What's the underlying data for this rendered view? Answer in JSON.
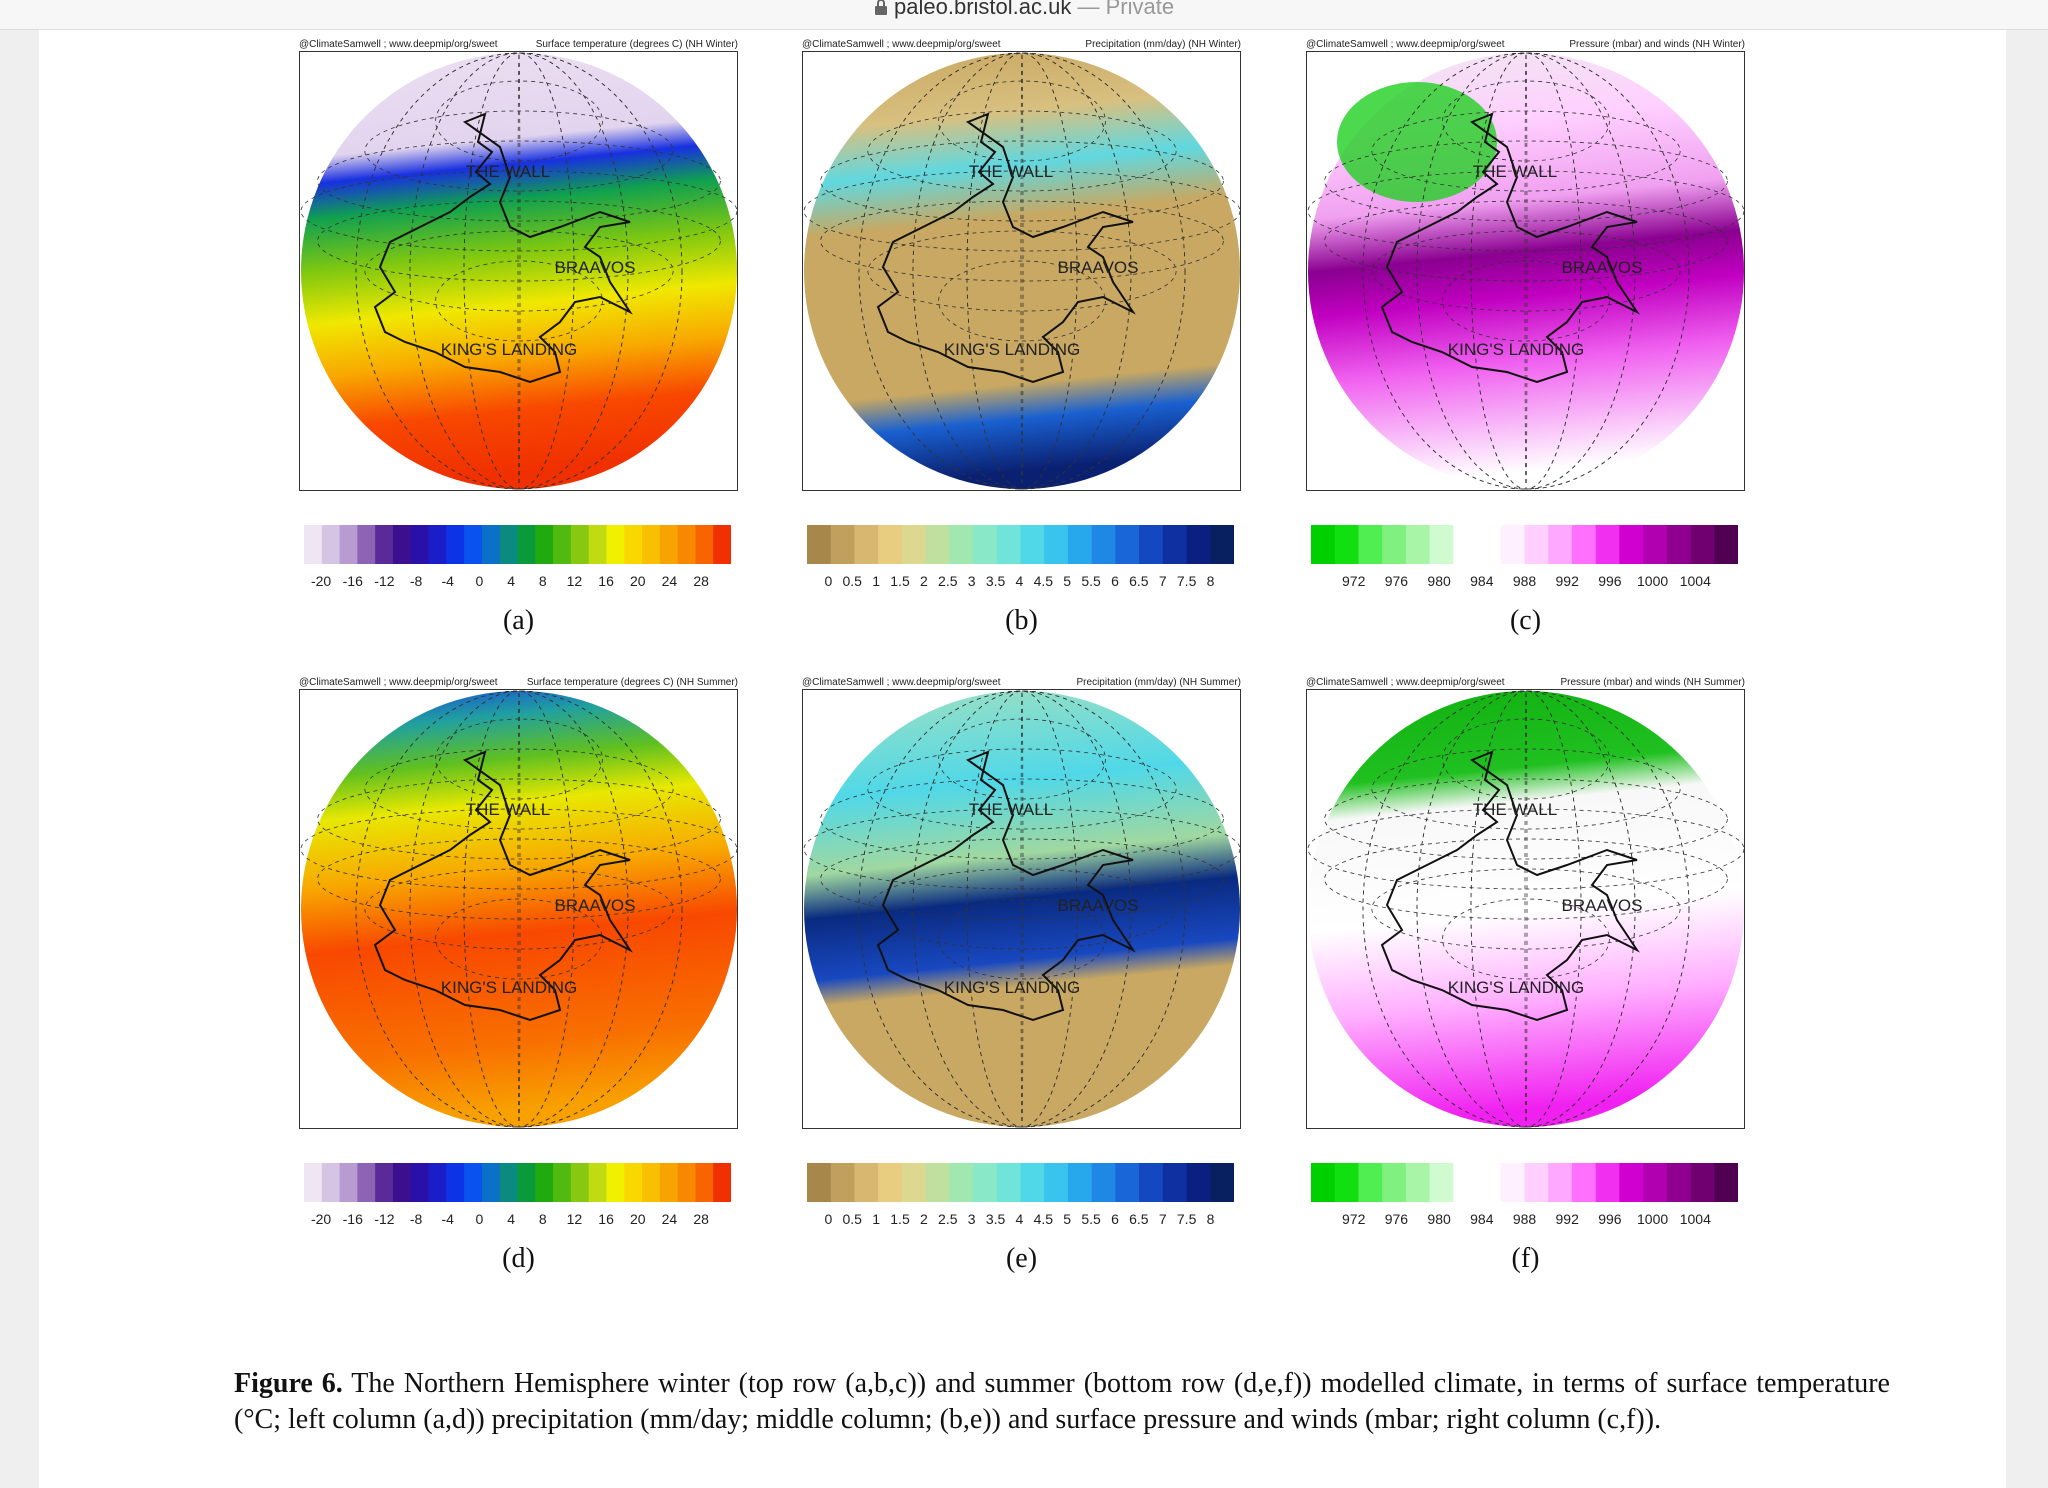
{
  "browser": {
    "url": "paleo.bristol.ac.uk",
    "mode": "— Private"
  },
  "panels": [
    {
      "credit": "@ClimateSamwell ; www.deepmip/org/sweet",
      "title": "Surface temperature (degrees C) (NH Winter)",
      "places": [
        "THE WALL",
        "BRAAVOS",
        "KING'S LANDING"
      ],
      "colorbar_labels": [
        -20,
        -16,
        -12,
        -8,
        -4,
        0,
        4,
        8,
        12,
        16,
        20,
        24,
        28
      ],
      "letter": "(a)"
    },
    {
      "credit": "@ClimateSamwell ; www.deepmip/org/sweet",
      "title": "Precipitation (mm/day) (NH Winter)",
      "places": [
        "THE WALL",
        "BRAAVOS",
        "KING'S LANDING"
      ],
      "colorbar_labels": [
        0,
        0.5,
        1,
        1.5,
        2,
        2.5,
        3,
        3.5,
        4,
        4.5,
        5,
        5.5,
        6,
        6.5,
        7,
        7.5,
        8
      ],
      "letter": "(b)"
    },
    {
      "credit": "@ClimateSamwell ; www.deepmip/org/sweet",
      "title": "Pressure (mbar) and winds (NH Winter)",
      "places": [
        "THE WALL",
        "BRAAVOS",
        "KING'S LANDING"
      ],
      "colorbar_labels": [
        972,
        976,
        980,
        984,
        988,
        992,
        996,
        1000,
        1004
      ],
      "letter": "(c)"
    },
    {
      "credit": "@ClimateSamwell ; www.deepmip/org/sweet",
      "title": "Surface temperature (degrees C) (NH Summer)",
      "places": [
        "THE WALL",
        "BRAAVOS",
        "KING'S LANDING"
      ],
      "colorbar_labels": [
        -20,
        -16,
        -12,
        -8,
        -4,
        0,
        4,
        8,
        12,
        16,
        20,
        24,
        28
      ],
      "letter": "(d)"
    },
    {
      "credit": "@ClimateSamwell ; www.deepmip/org/sweet",
      "title": "Precipitation (mm/day) (NH Summer)",
      "places": [
        "THE WALL",
        "BRAAVOS",
        "KING'S LANDING"
      ],
      "colorbar_labels": [
        0,
        0.5,
        1,
        1.5,
        2,
        2.5,
        3,
        3.5,
        4,
        4.5,
        5,
        5.5,
        6,
        6.5,
        7,
        7.5,
        8
      ],
      "letter": "(e)"
    },
    {
      "credit": "@ClimateSamwell ; www.deepmip/org/sweet",
      "title": "Pressure (mbar) and winds (NH Summer)",
      "places": [
        "THE WALL",
        "BRAAVOS",
        "KING'S LANDING"
      ],
      "colorbar_labels": [
        972,
        976,
        980,
        984,
        988,
        992,
        996,
        1000,
        1004
      ],
      "letter": "(f)"
    }
  ],
  "caption": {
    "label": "Figure 6.",
    "text": "The Northern Hemisphere winter (top row (a,b,c)) and summer (bottom row (d,e,f)) modelled climate, in terms of surface temperature (°C; left column (a,d)) precipitation (mm/day; middle column; (b,e)) and surface pressure and winds (mbar; right column (c,f))."
  }
}
